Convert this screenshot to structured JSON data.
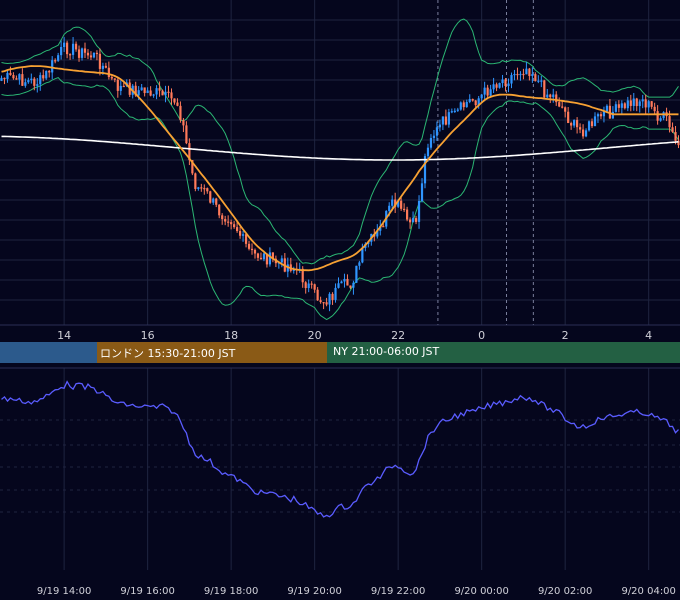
{
  "colors": {
    "background": "#05061d",
    "grid": "#1f2440",
    "candle_up": "#2f95ff",
    "candle_down": "#ff7a5a",
    "bollinger": "#2bb673",
    "ma_short": "#f7a133",
    "ma_long": "#ffffff",
    "oscillator": "#5a5cff",
    "session_tokyo": "#2c5a8c",
    "session_london": "#8a5a16",
    "session_ny": "#236043"
  },
  "chart_data": [
    {
      "type": "candlestick",
      "title": "",
      "x_tick_labels": [
        "14",
        "16",
        "18",
        "20",
        "22",
        "0",
        "2",
        "4"
      ],
      "series": [
        {
          "type": "candlestick"
        },
        {
          "type": "line"
        },
        {
          "type": "line"
        },
        {
          "type": "line"
        },
        {
          "type": "line"
        }
      ],
      "grid": true,
      "vertical_markers": [
        "21:30",
        "23:00",
        "23:30"
      ]
    },
    {
      "type": "table",
      "sessions": [
        {
          "name": "tokyo",
          "label": ""
        },
        {
          "name": "london",
          "label": "ロンドン 15:30-21:00 JST"
        },
        {
          "name": "ny",
          "label": "NY 21:00-06:00 JST"
        }
      ]
    },
    {
      "type": "line",
      "x_tick_labels": [
        "9/19 14:00",
        "9/19 16:00",
        "9/19 18:00",
        "9/19 20:00",
        "9/19 22:00",
        "9/20 00:00",
        "9/20 02:00",
        "9/20 04:00"
      ],
      "series": [
        {
          "type": "line"
        }
      ],
      "grid": true
    }
  ]
}
